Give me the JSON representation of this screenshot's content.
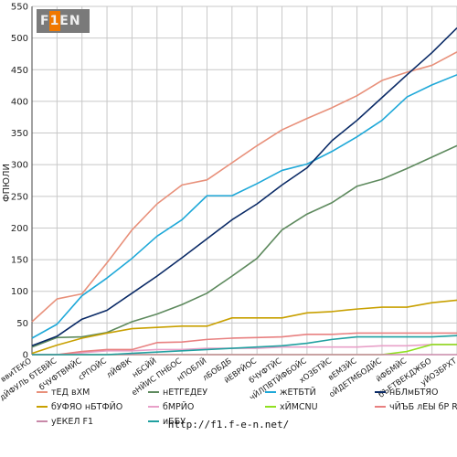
{
  "chart_data": {
    "type": "line",
    "title": "",
    "ylabel": "ФПЮЛИ",
    "xlabel": "",
    "ylim": [
      0,
      550
    ],
    "yticks": [
      0,
      50,
      100,
      150,
      200,
      250,
      300,
      350,
      400,
      450,
      500,
      550
    ],
    "grid": true,
    "legend_position": "bottom",
    "categories": [
      "ввиТЕКО",
      "дЙФУЛЬ бТЕВЙС",
      "бЧУФТВМЙС",
      "сРПОЙС",
      "лЙФВК",
      "нБСЙЙ",
      "еНЙИС ПНБОС",
      "нПОБЛЙ",
      "лБОБДБ",
      "йЕВРЙОС",
      "бЧУФТЙС",
      "чЙЛПВТЙФБОЙС",
      "хОЗБТЙС",
      "вЕМЗЙС",
      "оЙДЕТМБОДЙС",
      "йФБМЙС",
      "бЪЕТВЕКДЖБО",
      "уЙОЗБРХТ"
    ],
    "series": [
      {
        "name": "тЕД вХМ",
        "color": "#e8907a",
        "values": [
          52,
          88,
          96,
          145,
          197,
          238,
          268,
          276,
          303,
          330,
          355,
          373,
          390,
          409,
          433,
          446,
          457,
          478
        ]
      },
      {
        "name": "нЕТГЕДЕУ",
        "color": "#5e8a5e",
        "values": [
          12,
          27,
          28,
          35,
          52,
          64,
          79,
          97,
          124,
          152,
          197,
          222,
          240,
          266,
          277,
          294,
          312,
          330
        ]
      },
      {
        "name": "жЕТБТЙ",
        "color": "#1ea8d8",
        "values": [
          26,
          48,
          93,
          121,
          152,
          187,
          213,
          251,
          251,
          270,
          291,
          301,
          321,
          344,
          370,
          407,
          426,
          442
        ]
      },
      {
        "name": "нБЛмБТЯО",
        "color": "#0a2a66",
        "values": [
          14,
          29,
          56,
          70,
          97,
          124,
          153,
          183,
          213,
          238,
          268,
          295,
          338,
          370,
          406,
          442,
          477,
          516
        ]
      },
      {
        "name": "бУФЯО нБТФЙО",
        "color": "#c8a000",
        "values": [
          2,
          15,
          26,
          34,
          41,
          43,
          45,
          45,
          58,
          58,
          58,
          66,
          68,
          72,
          75,
          75,
          82,
          86
        ]
      },
      {
        "name": "бМРЙО",
        "color": "#e8a0c8",
        "values": [
          0,
          0,
          3,
          6,
          6,
          8,
          8,
          10,
          10,
          10,
          12,
          12,
          12,
          12,
          14,
          14,
          16,
          16
        ]
      },
      {
        "name": "хЙМСNU",
        "color": "#90e020",
        "values": [
          0,
          0,
          0,
          0,
          0,
          0,
          0,
          0,
          0,
          0,
          0,
          0,
          0,
          0,
          0,
          5,
          16,
          16
        ]
      },
      {
        "name": "чЙЪБ лЕЫ бР RB",
        "color": "#e88080",
        "values": [
          0,
          0,
          5,
          8,
          8,
          19,
          20,
          24,
          26,
          27,
          28,
          32,
          32,
          34,
          34,
          34,
          34,
          34
        ]
      },
      {
        "name": "уЕКЕЛ F1",
        "color": "#c888a8",
        "values": [
          0,
          0,
          0,
          0,
          0,
          0,
          0,
          0,
          0,
          0,
          0,
          0,
          0,
          0,
          0,
          0,
          0,
          0
        ]
      },
      {
        "name": "иББУ",
        "color": "#20a0a0",
        "values": [
          0,
          0,
          0,
          0,
          2,
          4,
          6,
          8,
          10,
          12,
          14,
          18,
          24,
          28,
          28,
          28,
          28,
          30
        ]
      }
    ]
  },
  "footer": {
    "url": "http://f1.f-e-n.net/"
  },
  "logo": {
    "text": "F1EN"
  },
  "colors": {
    "background": "#ffffff",
    "grid": "#c8c8c8",
    "axis": "#444444"
  }
}
